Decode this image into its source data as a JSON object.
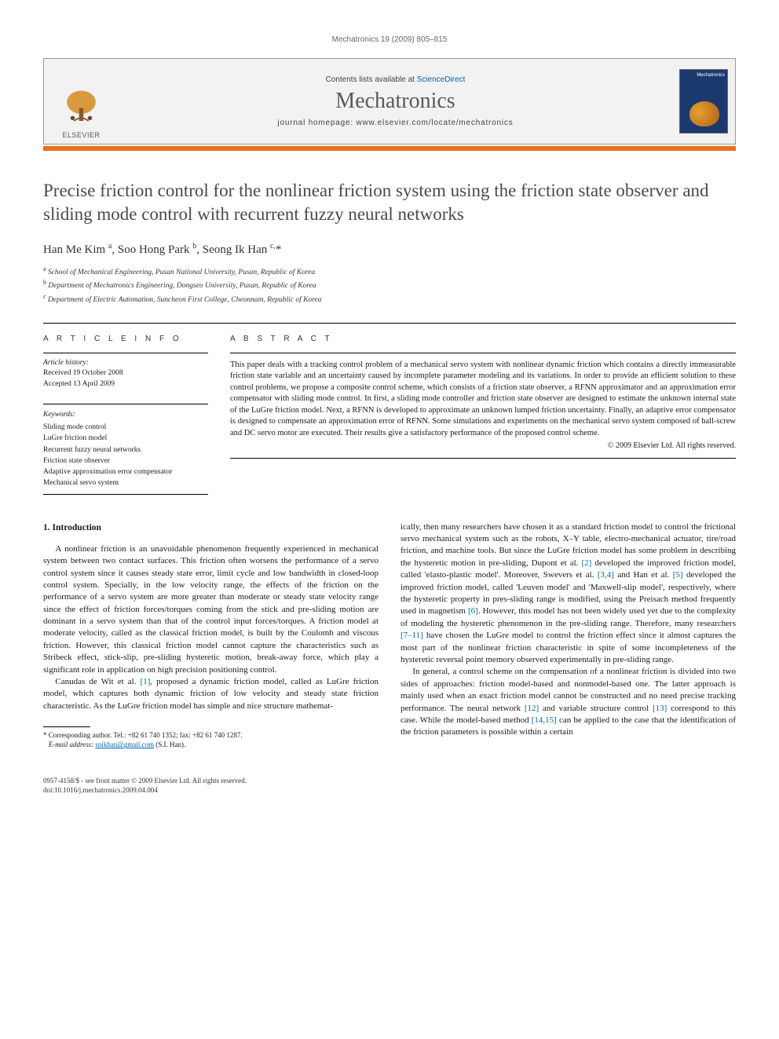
{
  "running_head": "Mechatronics 19 (2009) 805–815",
  "banner": {
    "publisher": "ELSEVIER",
    "contents_prefix": "Contents lists available at ",
    "contents_link": "ScienceDirect",
    "journal": "Mechatronics",
    "homepage_prefix": "journal homepage: ",
    "homepage_url": "www.elsevier.com/locate/mechatronics",
    "cover_label": "Mechatronics"
  },
  "title": "Precise friction control for the nonlinear friction system using the friction state observer and sliding mode control with recurrent fuzzy neural networks",
  "authors_html": "Han Me Kim <sup>a</sup>, Soo Hong Park <sup>b</sup>, Seong Ik Han <sup>c,</sup>*",
  "affiliations": [
    "a School of Mechanical Engineering, Pusan National University, Pusan, Republic of Korea",
    "b Department of Mechatronics Engineering, Dongseo University, Pusan, Republic of Korea",
    "c Department of Electric Automation, Suncheon First College, Cheonnam, Republic of Korea"
  ],
  "info": {
    "left_heading": "A R T I C L E   I N F O",
    "right_heading": "A B S T R A C T",
    "history_label": "Article history:",
    "received": "Received 19 October 2008",
    "accepted": "Accepted 13 April 2009",
    "keywords_label": "Keywords:",
    "keywords": [
      "Sliding mode control",
      "LuGre friction model",
      "Recurrent fuzzy neural networks",
      "Friction state observer",
      "Adaptive approximation error compensator",
      "Mechanical servo system"
    ],
    "abstract": "This paper deals with a tracking control problem of a mechanical servo system with nonlinear dynamic friction which contains a directly immeasurable friction state variable and an uncertainty caused by incomplete parameter modeling and its variations. In order to provide an efficient solution to these control problems, we propose a composite control scheme, which consists of a friction state observer, a RFNN approximator and an approximation error compensator with sliding mode control. In first, a sliding mode controller and friction state observer are designed to estimate the unknown internal state of the LuGre friction model. Next, a RFNN is developed to approximate an unknown lumped friction uncertainty. Finally, an adaptive error compensator is designed to compensate an approximation error of RFNN. Some simulations and experiments on the mechanical servo system composed of ball-screw and DC servo motor are executed. Their results give a satisfactory performance of the proposed control scheme.",
    "copyright": "© 2009 Elsevier Ltd. All rights reserved."
  },
  "body": {
    "section_heading": "1. Introduction",
    "col1_p1": "A nonlinear friction is an unavoidable phenomenon frequently experienced in mechanical system between two contact surfaces. This friction often worsens the performance of a servo control system since it causes steady state error, limit cycle and low bandwidth in closed-loop control system. Specially, in the low velocity range, the effects of the friction on the performance of a servo system are more greater than moderate or steady state velocity range since the effect of friction forces/torques coming from the stick and pre-sliding motion are dominant in a servo system than that of the control input forces/torques. A friction model at moderate velocity, called as the classical friction model, is built by the Coulomb and viscous friction. However, this classical friction model cannot capture the characteristics such as Stribeck effect, stick-slip, pre-sliding hysteretic motion, break-away force, which play a significant role in application on high precision positioning control.",
    "col1_p2_a": "Canudas de Wit et al. ",
    "ref1": "[1]",
    "col1_p2_b": ", proposed a dynamic friction model, called as LuGre friction model, which captures both dynamic friction of low velocity and steady state friction characteristic. As the LuGre friction model has simple and nice structure mathemat-",
    "col2_p1_a": "ically, then many researchers have chosen it as a standard friction model to control the frictional servo mechanical system such as the robots, X–Y table, electro-mechanical actuator, tire/road friction, and machine tools. But since the LuGre friction model has some problem in describing the hysteretic motion in pre-sliding, Dupont et al. ",
    "ref2": "[2]",
    "col2_p1_b": " developed the improved friction model, called 'elasto-plastic model'. Moreover, Swevers et al. ",
    "ref34": "[3,4]",
    "col2_p1_c": " and Han et al. ",
    "ref5": "[5]",
    "col2_p1_d": " developed the improved friction model, called 'Leuven model' and 'Maxwell-slip model', respectively, where the hysteretic property in pres-sliding range is modified, using the Preisach method frequently used in magnetism ",
    "ref6": "[6]",
    "col2_p1_e": ". However, this model has not been widely used yet due to the complexity of modeling the hysteretic phenomenon in the pre-sliding range. Therefore, many researchers ",
    "ref711": "[7–11]",
    "col2_p1_f": " have chosen the LuGre model to control the friction effect since it almost captures the most part of the nonlinear friction characteristic in spite of some incompleteness of the hysteretic reversal point memory observed experimentally in pre-sliding range.",
    "col2_p2_a": "In general, a control scheme on the compensation of a nonlinear friction is divided into two sides of approaches: friction model-based and nonmodel-based one. The latter approach is mainly used when an exact friction model cannot be constructed and no need precise tracking performance. The neural network ",
    "ref12": "[12]",
    "col2_p2_b": " and variable structure control ",
    "ref13": "[13]",
    "col2_p2_c": " correspond to this case. While the model-based method ",
    "ref1415": "[14,15]",
    "col2_p2_d": " can be applied to the case that the identification of the friction parameters is possible within a certain"
  },
  "footnote": {
    "corresponding": "* Corresponding author. Tel.: +82 61 740 1352; fax: +82 61 740 1287.",
    "email_label": "E-mail address:",
    "email": "snikhan@gmail.com",
    "email_suffix": "(S.I. Han)."
  },
  "footer": {
    "issn_line": "0957-4158/$ - see front matter © 2009 Elsevier Ltd. All rights reserved.",
    "doi_line": "doi:10.1016/j.mechatronics.2009.04.004"
  },
  "colors": {
    "orange": "#e9711c",
    "link": "#0066aa",
    "cover_bg": "#1a3a6e"
  }
}
